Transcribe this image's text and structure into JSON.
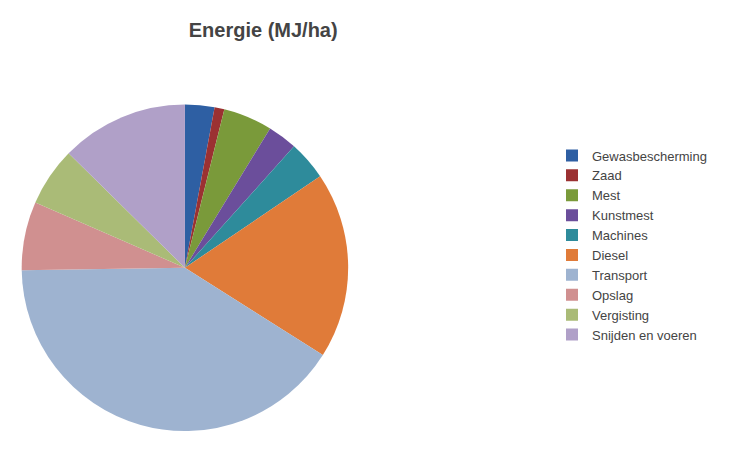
{
  "chart_data": {
    "type": "pie",
    "title": "Energie (MJ/ha)",
    "categories": [
      "Gewasbescherming",
      "Zaad",
      "Mest",
      "Kunstmest",
      "Machines",
      "Diesel",
      "Transport",
      "Opslag",
      "Vergisting",
      "Snijden en voeren"
    ],
    "values": [
      3,
      1,
      5,
      3,
      4,
      19,
      42,
      7,
      6,
      13
    ],
    "colors": [
      "#2E5FA3",
      "#9B3132",
      "#7A9A3A",
      "#6B4E9B",
      "#2E8B9B",
      "#E07B39",
      "#9EB3D0",
      "#D09090",
      "#AABB77",
      "#B0A0C8"
    ],
    "legend": "right"
  }
}
